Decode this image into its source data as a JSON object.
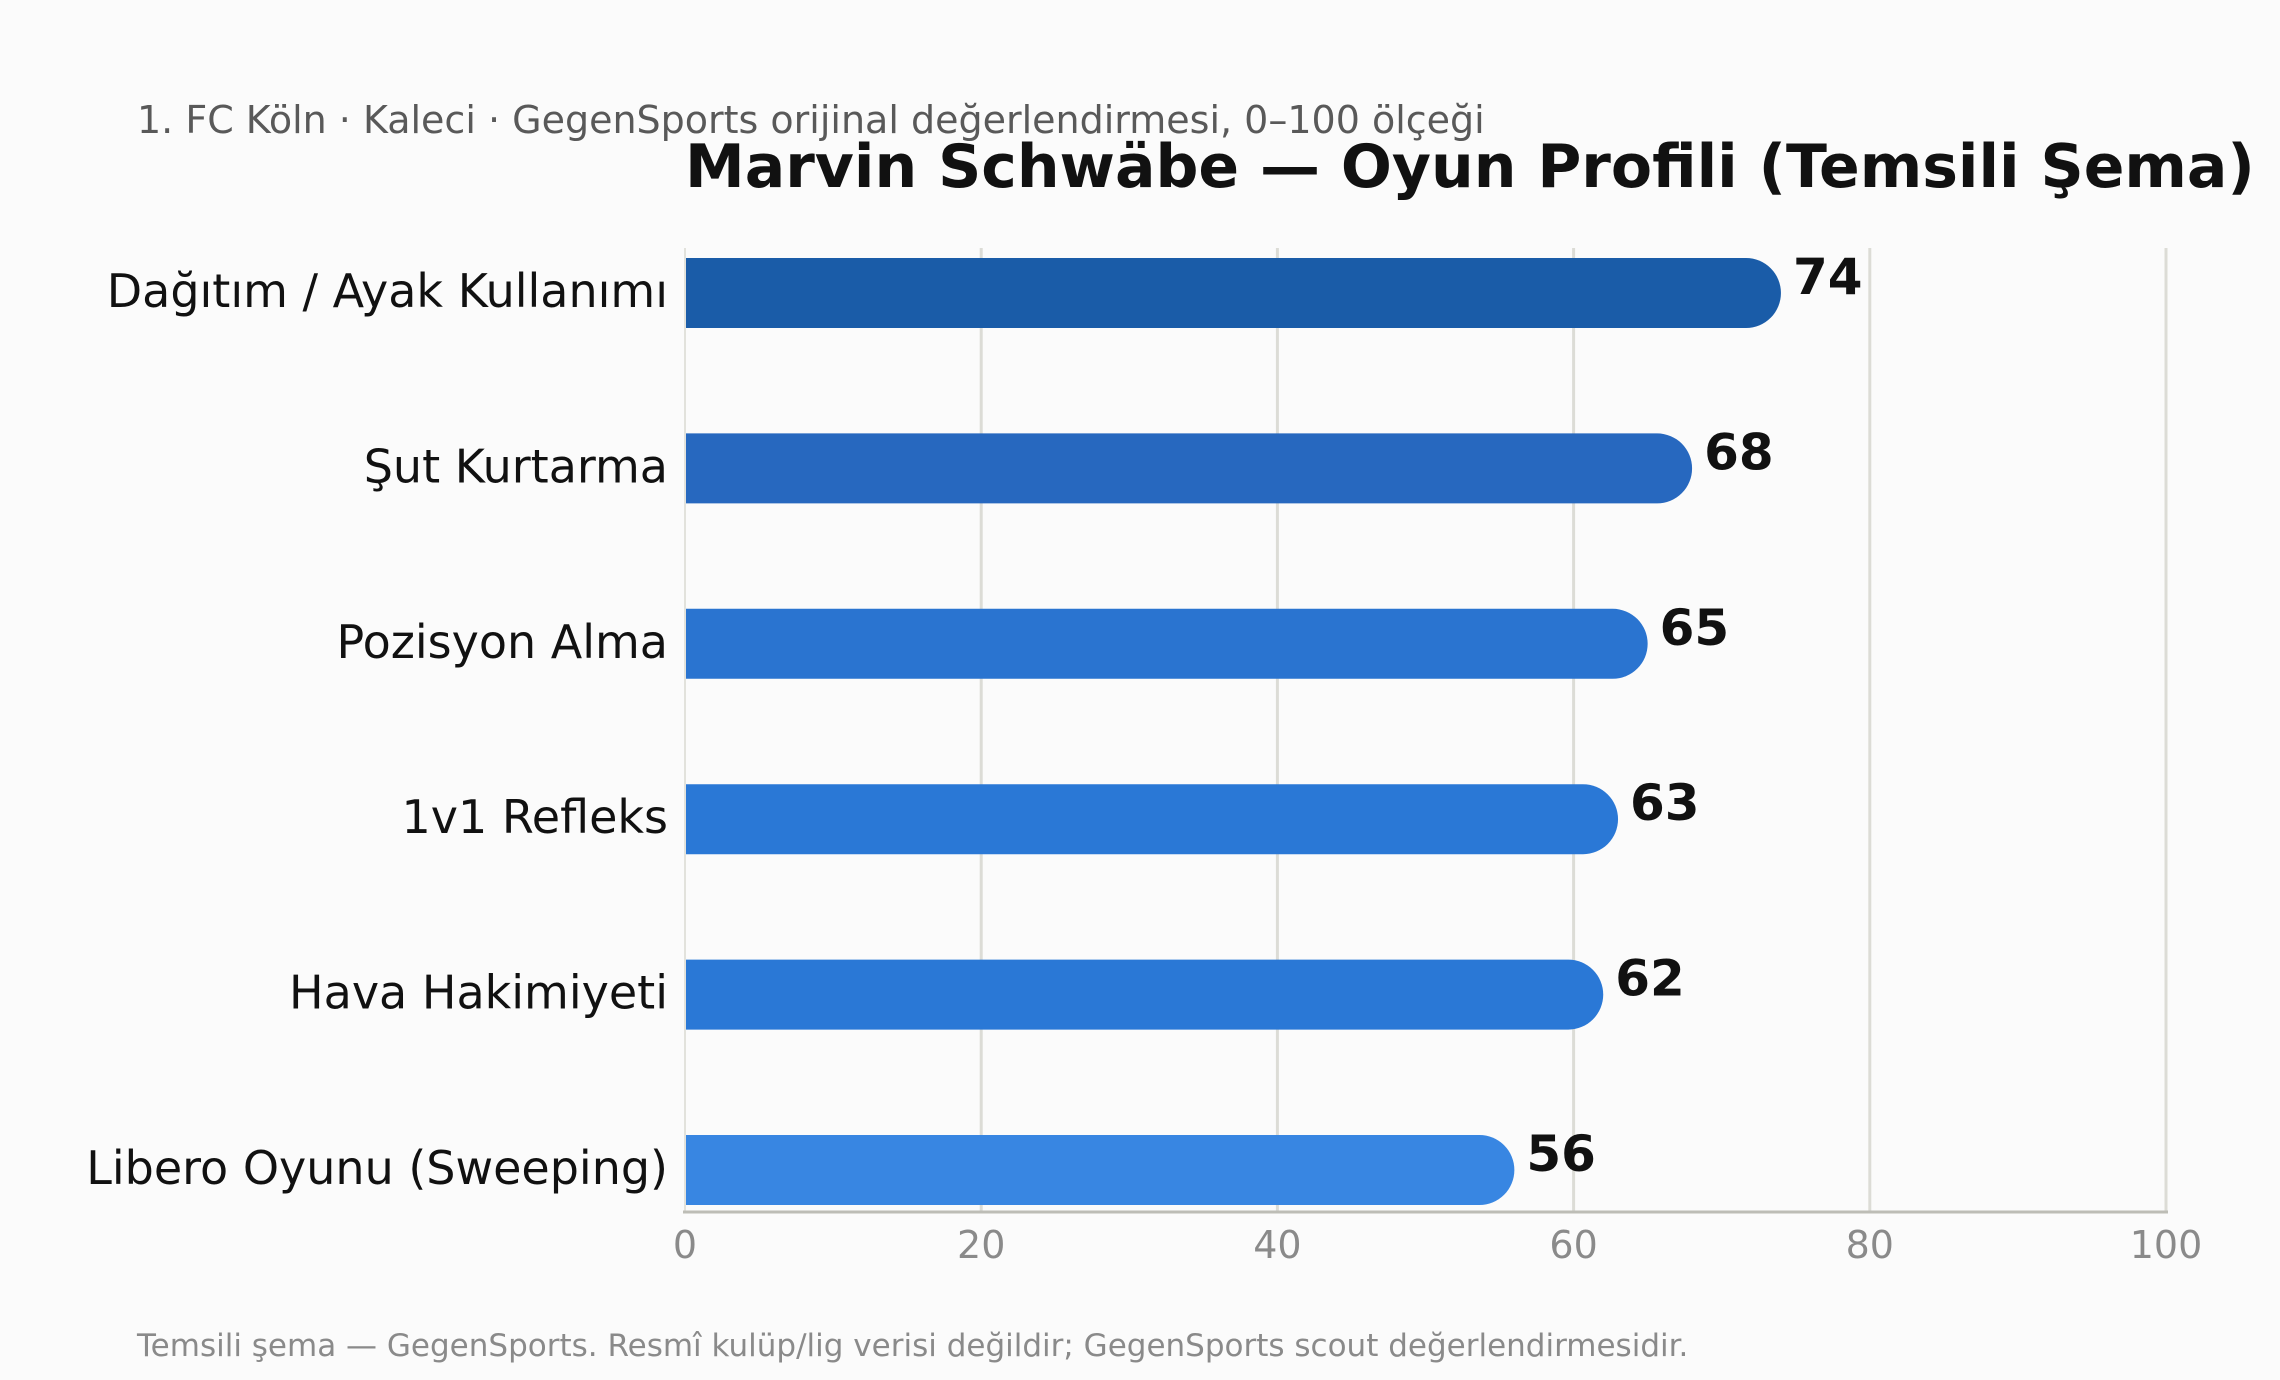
{
  "chart_data": {
    "type": "bar",
    "orientation": "horizontal",
    "title": "Marvin Schwäbe — Oyun Profili (Temsili Şema)",
    "subtitle": "1. FC Köln · Kaleci · GegenSports orijinal değerlendirmesi, 0–100 ölçeği",
    "footnote": "Temsili şema — GegenSports. Resmî kulüp/lig verisi değildir; GegenSports scout değerlendirmesidir.",
    "categories": [
      "Dağıtım / Ayak Kullanımı",
      "Şut Kurtarma",
      "Pozisyon Alma",
      "1v1 Refleks",
      "Hava Hakimiyeti",
      "Libero Oyunu (Sweeping)"
    ],
    "values": [
      74,
      68,
      65,
      63,
      62,
      56
    ],
    "bar_colors": [
      "#1a5ca8",
      "#2768bf",
      "#2a74d0",
      "#2a78d6",
      "#2a78d6",
      "#3886e2"
    ],
    "xlim": [
      0,
      100
    ],
    "xticks": [
      0,
      20,
      40,
      60,
      80,
      100
    ],
    "xlabel": "",
    "ylabel": "",
    "grid": "vertical",
    "legend": "none"
  }
}
